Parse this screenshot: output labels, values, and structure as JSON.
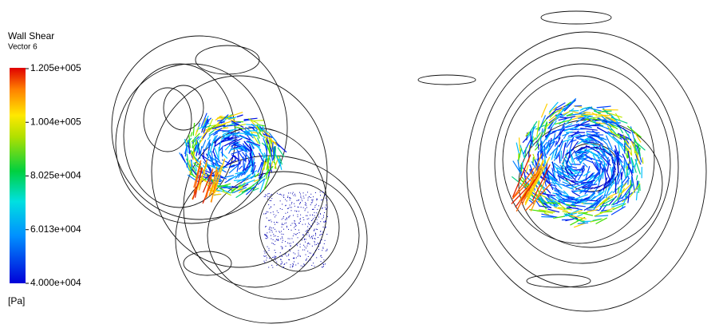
{
  "legend": {
    "title": "Wall Shear",
    "subtitle": "Vector 6",
    "ticks": [
      "1.205e+005",
      "1.004e+005",
      "8.025e+004",
      "6.013e+004",
      "4.000e+004"
    ],
    "unit": "[Pa]"
  }
}
